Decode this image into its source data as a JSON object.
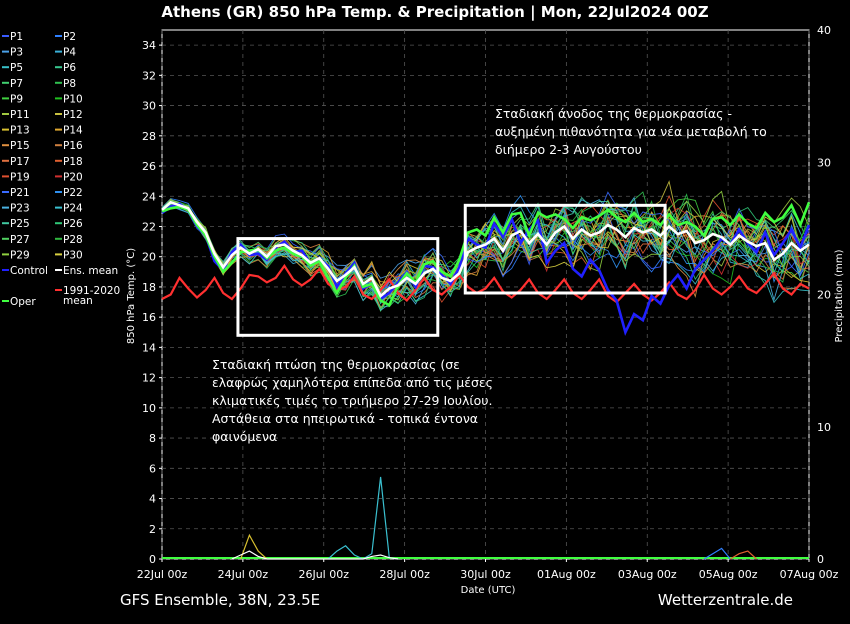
{
  "chart_data": {
    "type": "line",
    "title": "Athens  (GR)  850 hPa Temp. & Precipitation | Mon, 22Jul2024 00Z",
    "xlabel": "Date (UTC)",
    "ylabel": "850 hPa Temp. (°C)",
    "y2label": "Precipitation (mm)",
    "ylim": [
      0,
      35
    ],
    "y2lim": [
      0,
      40
    ],
    "yticks": [
      "0",
      "2",
      "4",
      "6",
      "8",
      "10",
      "12",
      "14",
      "16",
      "18",
      "20",
      "22",
      "24",
      "26",
      "28",
      "30",
      "32",
      "34"
    ],
    "y2ticks": [
      "0",
      "10",
      "20",
      "30",
      "40"
    ],
    "xticks": [
      "22Jul 00z",
      "24Jul 00z",
      "26Jul 00z",
      "28Jul 00z",
      "30Jul 00z",
      "01Aug 00z",
      "03Aug 00z",
      "05Aug 00z",
      "07Aug 00z"
    ],
    "grid": true,
    "footer_left": "GFS Ensemble, 38N, 23.5E",
    "footer_right": "Wetterzentrale.de",
    "legend": [
      {
        "name": "P1",
        "color": "#3a5bff"
      },
      {
        "name": "P2",
        "color": "#2f80ff"
      },
      {
        "name": "P3",
        "color": "#4aa0e8"
      },
      {
        "name": "P4",
        "color": "#3ab0d8"
      },
      {
        "name": "P5",
        "color": "#38c0c8"
      },
      {
        "name": "P6",
        "color": "#38c890"
      },
      {
        "name": "P7",
        "color": "#40d070"
      },
      {
        "name": "P8",
        "color": "#30c050"
      },
      {
        "name": "P9",
        "color": "#40d040"
      },
      {
        "name": "P10",
        "color": "#20c020"
      },
      {
        "name": "P11",
        "color": "#a0c840"
      },
      {
        "name": "P12",
        "color": "#c8c040"
      },
      {
        "name": "P13",
        "color": "#d8c030"
      },
      {
        "name": "P14",
        "color": "#e0a830"
      },
      {
        "name": "P15",
        "color": "#e09040"
      },
      {
        "name": "P16",
        "color": "#d08040"
      },
      {
        "name": "P17",
        "color": "#e07040"
      },
      {
        "name": "P18",
        "color": "#e06030"
      },
      {
        "name": "P19",
        "color": "#e05030"
      },
      {
        "name": "P20",
        "color": "#d03030"
      },
      {
        "name": "P21",
        "color": "#3a6bff"
      },
      {
        "name": "P22",
        "color": "#2f90f0"
      },
      {
        "name": "P23",
        "color": "#4ab0e0"
      },
      {
        "name": "P24",
        "color": "#3ac0d0"
      },
      {
        "name": "P25",
        "color": "#40c8a0"
      },
      {
        "name": "P26",
        "color": "#30c878"
      },
      {
        "name": "P27",
        "color": "#50d060"
      },
      {
        "name": "P28",
        "color": "#30b840"
      },
      {
        "name": "P29",
        "color": "#90d040"
      },
      {
        "name": "P30",
        "color": "#d8d040"
      },
      {
        "name": "Control",
        "color": "#2020ff"
      },
      {
        "name": "Ens. mean",
        "color": "#ffffff"
      },
      {
        "name": "Oper",
        "color": "#40ff40"
      },
      {
        "name": "1991-2020\nmean",
        "color": "#ff3030"
      }
    ],
    "series": [
      {
        "name": "Ens. mean",
        "color": "#ffffff",
        "values": [
          23.1,
          23.6,
          23.4,
          23.2,
          22.3,
          21.6,
          20.2,
          19.3,
          20.1,
          20.6,
          20.2,
          20.5,
          20.0,
          20.7,
          20.8,
          20.4,
          20.1,
          19.6,
          19.9,
          19.2,
          18.4,
          18.8,
          19.3,
          18.2,
          18.6,
          17.4,
          17.9,
          18.1,
          18.6,
          18.2,
          18.9,
          19.2,
          18.6,
          18.4,
          18.9,
          20.3,
          20.6,
          20.8,
          21.2,
          20.4,
          21.4,
          21.7,
          20.9,
          21.5,
          20.8,
          21.6,
          22.0,
          21.2,
          21.8,
          21.4,
          21.6,
          22.1,
          21.8,
          21.3,
          21.9,
          21.6,
          21.8,
          21.4,
          22.0,
          21.5,
          21.7,
          20.9,
          21.1,
          21.5,
          21.3,
          20.8,
          21.4,
          21.0,
          20.7,
          20.9,
          19.8,
          20.2,
          20.9,
          20.4,
          20.8
        ]
      },
      {
        "name": "Control",
        "color": "#2020ff",
        "values": [
          22.9,
          23.3,
          23.5,
          23.1,
          22.0,
          21.4,
          19.7,
          19.1,
          20.3,
          20.8,
          20.1,
          20.2,
          19.8,
          20.6,
          21.0,
          20.3,
          20.4,
          19.5,
          19.8,
          19.4,
          18.0,
          18.9,
          19.6,
          17.9,
          18.2,
          17.2,
          17.6,
          18.3,
          19.0,
          18.0,
          19.4,
          19.3,
          18.8,
          18.2,
          19.3,
          21.2,
          20.8,
          20.6,
          22.2,
          21.3,
          22.5,
          20.9,
          21.8,
          22.4,
          19.6,
          20.4,
          20.9,
          19.2,
          18.7,
          19.8,
          19.1,
          17.8,
          17.1,
          15.0,
          16.2,
          15.8,
          17.4,
          16.9,
          18.1,
          18.8,
          17.9,
          19.2,
          19.8,
          20.4,
          21.2,
          20.8,
          21.8,
          20.9,
          20.3,
          21.6,
          20.1,
          20.9,
          21.8,
          20.6,
          22.1
        ]
      },
      {
        "name": "Oper",
        "color": "#40ff40",
        "values": [
          23.0,
          23.2,
          23.3,
          23.1,
          22.1,
          21.4,
          20.0,
          19.0,
          19.6,
          20.3,
          20.4,
          20.5,
          19.9,
          20.4,
          20.6,
          20.2,
          20.0,
          19.4,
          19.7,
          18.6,
          17.6,
          18.6,
          19.4,
          18.0,
          18.2,
          17.1,
          16.8,
          18.1,
          18.9,
          18.3,
          19.5,
          19.7,
          19.0,
          18.7,
          19.8,
          21.6,
          21.8,
          21.4,
          22.6,
          21.6,
          22.8,
          22.9,
          21.4,
          22.9,
          22.6,
          22.8,
          22.5,
          21.9,
          22.6,
          22.4,
          22.7,
          23.1,
          22.6,
          22.3,
          22.9,
          22.3,
          22.5,
          22.1,
          22.8,
          22.1,
          22.3,
          22.0,
          21.4,
          22.5,
          22.6,
          22.1,
          22.8,
          22.2,
          21.9,
          22.9,
          22.3,
          22.6,
          23.4,
          22.1,
          23.6
        ]
      },
      {
        "name": "1991-2020 mean",
        "color": "#ff3030",
        "values": [
          17.2,
          17.5,
          18.6,
          17.9,
          17.3,
          17.8,
          18.6,
          17.6,
          17.2,
          17.9,
          18.8,
          18.7,
          18.3,
          18.6,
          19.4,
          18.5,
          18.1,
          18.5,
          19.2,
          18.2,
          17.8,
          18.0,
          18.7,
          17.5,
          17.2,
          17.8,
          18.5,
          17.6,
          17.1,
          17.8,
          18.6,
          17.8,
          17.5,
          18.0,
          18.8,
          18.0,
          17.6,
          17.9,
          18.6,
          17.7,
          17.3,
          17.8,
          18.5,
          17.6,
          17.2,
          17.8,
          18.5,
          17.6,
          17.2,
          17.8,
          18.5,
          17.4,
          17.0,
          17.6,
          18.2,
          17.5,
          17.1,
          17.6,
          18.3,
          17.5,
          17.2,
          17.8,
          18.8,
          17.9,
          17.5,
          18.0,
          18.7,
          17.9,
          17.6,
          18.2,
          18.9,
          17.9,
          17.5,
          18.2,
          17.9
        ]
      }
    ],
    "precip": [
      {
        "name": "P13",
        "color": "#d8c030",
        "x": [
          9,
          10,
          11,
          12
        ],
        "values": [
          0,
          1.8,
          0.6,
          0
        ]
      },
      {
        "name": "P24",
        "color": "#3ac0d0",
        "x": [
          19,
          20,
          21,
          22,
          23,
          24,
          25,
          26,
          27
        ],
        "values": [
          0,
          0.6,
          1.0,
          0.3,
          0,
          0.4,
          6.2,
          0.1,
          0
        ]
      },
      {
        "name": "P2",
        "color": "#2f80ff",
        "x": [
          62,
          63,
          64,
          65
        ],
        "values": [
          0,
          0.4,
          0.8,
          0
        ]
      },
      {
        "name": "P18",
        "color": "#e06030",
        "x": [
          65,
          66,
          67,
          68
        ],
        "values": [
          0,
          0.4,
          0.6,
          0
        ]
      },
      {
        "name": "Ens. mean",
        "color": "#ffffff",
        "x": [
          8,
          9,
          10,
          11,
          12,
          23,
          24,
          25,
          26,
          27
        ],
        "values": [
          0,
          0.3,
          0.6,
          0.2,
          0,
          0,
          0.2,
          0.3,
          0.1,
          0
        ]
      }
    ]
  },
  "annotations": [
    {
      "id": "rise",
      "lines": [
        "Σταδιακή άνοδος της θερμοκρασίας -",
        "αυξημένη πιθανότητα για νέα μεταβολή το",
        "διήμερο 2-3 Αυγούστου"
      ]
    },
    {
      "id": "drop",
      "lines": [
        "Σταδιακή πτώση της θερμοκρασίας (σε",
        "ελαφρώς χαμηλότερα επίπεδα από τις μέσες",
        "κλιματικές τιμές το τριήμερο 27-29 Ιουλίου.",
        "Αστάθεια στα ηπειρωτικά - τοπικά έντονα",
        "φαινόμενα"
      ]
    }
  ],
  "highlight_boxes": [
    {
      "id": "drop-box",
      "x_range": [
        "24Jul 00z",
        "30Jul 00z"
      ],
      "y_range": [
        14.8,
        21.2
      ]
    },
    {
      "id": "rise-box",
      "x_range": [
        "30Jul 12z",
        "05Aug 12z"
      ],
      "y_range": [
        17.6,
        23.4
      ]
    }
  ]
}
